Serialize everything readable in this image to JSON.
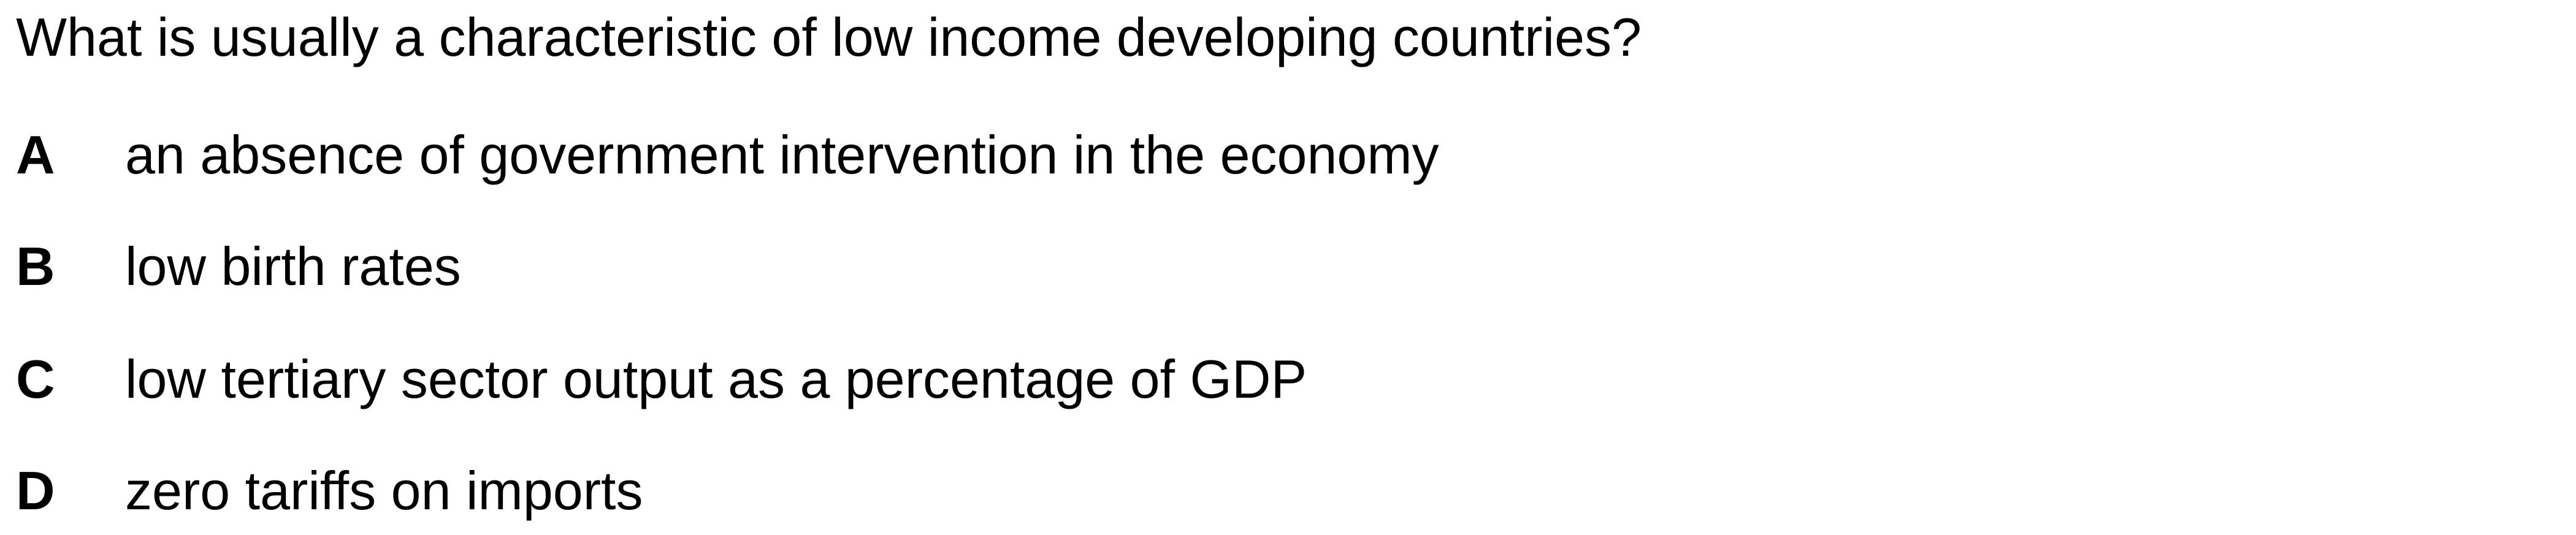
{
  "question": {
    "text": "What is usually a characteristic of low income developing countries?"
  },
  "options": [
    {
      "letter": "A",
      "text": "an absence of government intervention in the economy"
    },
    {
      "letter": "B",
      "text": "low birth rates"
    },
    {
      "letter": "C",
      "text": "low tertiary sector output as a percentage of GDP"
    },
    {
      "letter": "D",
      "text": "zero tariffs on imports"
    }
  ]
}
